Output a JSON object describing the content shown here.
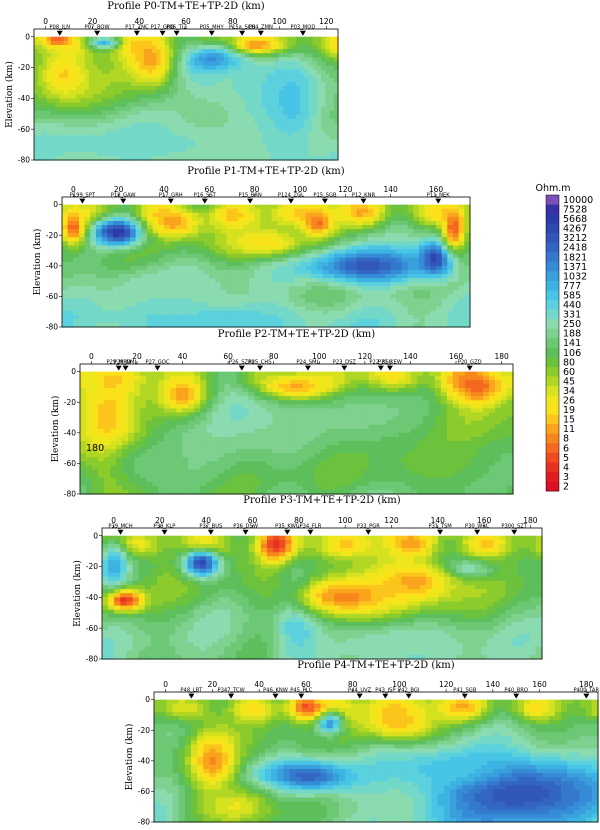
{
  "chart_data": [
    {
      "type": "heatmap",
      "title": "Profile P0-TM+TE+TP-2D (km)",
      "ylabel": "Elevation (km)",
      "x_ticks": [
        0,
        20,
        40,
        60,
        80,
        100,
        120
      ],
      "y_ticks": [
        0,
        -20,
        -40,
        -60,
        -80
      ],
      "xlim": [
        -5,
        125
      ],
      "ylim": [
        -80,
        5
      ],
      "stations": [
        {
          "label": "P08_JLN",
          "x": 6
        },
        {
          "label": "P07_BOW",
          "x": 22
        },
        {
          "label": "P17_ZNC",
          "x": 39
        },
        {
          "label": "P17_GRO",
          "x": 50
        },
        {
          "label": "P06_TIZ",
          "x": 56
        },
        {
          "label": "P05_MHY",
          "x": 71
        },
        {
          "label": "P15a_SCH",
          "x": 84
        },
        {
          "label": "P04_ZMN",
          "x": 92
        },
        {
          "label": "P03_MOD",
          "x": 110
        }
      ],
      "features": [
        {
          "x": 25,
          "z": -4,
          "rx": 7,
          "rz": 4,
          "v": 3.2
        },
        {
          "x": 72,
          "z": -18,
          "rx": 15,
          "rz": 14,
          "v": 4.2
        },
        {
          "x": 80,
          "z": -30,
          "rx": 30,
          "rz": 18,
          "v": 2.6
        },
        {
          "x": 105,
          "z": -45,
          "rx": 15,
          "rz": 40,
          "v": 3.0
        },
        {
          "x": 40,
          "z": -70,
          "rx": 70,
          "rz": 18,
          "v": 2.7
        },
        {
          "x": 45,
          "z": -15,
          "rx": 10,
          "rz": 18,
          "v": 0.9
        },
        {
          "x": 8,
          "z": -25,
          "rx": 12,
          "rz": 18,
          "v": 1.1
        },
        {
          "x": 90,
          "z": -5,
          "rx": 10,
          "rz": 6,
          "v": 0.8
        },
        {
          "x": 5,
          "z": -2,
          "rx": 6,
          "rz": 4,
          "v": 0.5
        }
      ],
      "base": 1.9
    },
    {
      "type": "heatmap",
      "title": "Profile P1-TM+TE+TP-2D (km)",
      "ylabel": "Elevation (km)",
      "x_ticks": [
        0,
        20,
        40,
        60,
        80,
        100,
        120,
        140,
        160
      ],
      "y_ticks": [
        0,
        -20,
        -40,
        -60,
        -80
      ],
      "xlim": [
        -5,
        175
      ],
      "ylim": [
        -80,
        5
      ],
      "stations": [
        {
          "label": "P199_SPT",
          "x": 4
        },
        {
          "label": "P18_GAW",
          "x": 22
        },
        {
          "label": "P17_GRH",
          "x": 43
        },
        {
          "label": "P16_SST",
          "x": 58
        },
        {
          "label": "P15_BRN",
          "x": 78
        },
        {
          "label": "P124_ZGL",
          "x": 96
        },
        {
          "label": "P15_SGB",
          "x": 111
        },
        {
          "label": "P12_KNR",
          "x": 128
        },
        {
          "label": "P11_NEK",
          "x": 161
        }
      ],
      "features": [
        {
          "x": 20,
          "z": -18,
          "rx": 11,
          "rz": 9,
          "v": 4.3
        },
        {
          "x": 130,
          "z": -40,
          "rx": 28,
          "rz": 12,
          "v": 3.9
        },
        {
          "x": 160,
          "z": -35,
          "rx": 8,
          "rz": 12,
          "v": 4.1
        },
        {
          "x": 60,
          "z": -75,
          "rx": 55,
          "rz": 14,
          "v": 2.9
        },
        {
          "x": 40,
          "z": -55,
          "rx": 30,
          "rz": 15,
          "v": 2.6
        },
        {
          "x": 0,
          "z": -15,
          "rx": 6,
          "rz": 12,
          "v": 0.6
        },
        {
          "x": 45,
          "z": -12,
          "rx": 12,
          "rz": 10,
          "v": 0.9
        },
        {
          "x": 108,
          "z": -12,
          "rx": 7,
          "rz": 10,
          "v": 0.6
        },
        {
          "x": 168,
          "z": -15,
          "rx": 5,
          "rz": 15,
          "v": 0.5
        },
        {
          "x": 85,
          "z": -25,
          "rx": 20,
          "rz": 10,
          "v": 1.2
        }
      ],
      "base": 2.0
    },
    {
      "type": "heatmap",
      "title": "Profile P2-TM+TE+TP-2D (km)",
      "ylabel": "Elevation (km)",
      "x_ticks": [
        0,
        20,
        40,
        60,
        80,
        100,
        120,
        140,
        160,
        180
      ],
      "y_ticks": [
        0,
        -20,
        -40,
        -60,
        -80
      ],
      "xlim": [
        -5,
        185
      ],
      "ylim": [
        -80,
        5
      ],
      "annotations": [
        "180"
      ],
      "stations": [
        {
          "label": "P29_MRD",
          "x": 12
        },
        {
          "label": "P28_NML",
          "x": 15
        },
        {
          "label": "P27_GOC",
          "x": 29
        },
        {
          "label": "P26_SZRa",
          "x": 66
        },
        {
          "label": "P25_CHS",
          "x": 74
        },
        {
          "label": "P24_SML",
          "x": 95
        },
        {
          "label": "P23_DSZ",
          "x": 111
        },
        {
          "label": "P22_RSC",
          "x": 127
        },
        {
          "label": "P21_KEW",
          "x": 131
        },
        {
          "label": "P20_GZD",
          "x": 166
        }
      ],
      "features": [
        {
          "x": 10,
          "z": -35,
          "rx": 15,
          "rz": 40,
          "v": 0.5
        },
        {
          "x": 60,
          "z": -25,
          "rx": 40,
          "rz": 30,
          "v": 2.7
        },
        {
          "x": 120,
          "z": -30,
          "rx": 30,
          "rz": 25,
          "v": 2.4
        },
        {
          "x": 30,
          "z": -60,
          "rx": 30,
          "rz": 20,
          "v": 2.3
        },
        {
          "x": 90,
          "z": -10,
          "rx": 15,
          "rz": 8,
          "v": 0.9
        },
        {
          "x": 40,
          "z": -15,
          "rx": 12,
          "rz": 14,
          "v": 0.9
        },
        {
          "x": 170,
          "z": -10,
          "rx": 12,
          "rz": 12,
          "v": 0.6
        },
        {
          "x": 150,
          "z": -60,
          "rx": 35,
          "rz": 20,
          "v": 2.0
        }
      ],
      "base": 1.7
    },
    {
      "type": "heatmap",
      "title": "Profile P3-TM+TE+TP-2D (km)",
      "ylabel": "Elevation (km)",
      "x_ticks": [
        0,
        20,
        40,
        60,
        80,
        100,
        120,
        140,
        160,
        180
      ],
      "y_ticks": [
        0,
        -20,
        -40,
        -60,
        -80
      ],
      "xlim": [
        -5,
        185
      ],
      "ylim": [
        -80,
        5
      ],
      "stations": [
        {
          "label": "P39_MCH",
          "x": 3
        },
        {
          "label": "P38_KLP",
          "x": 22
        },
        {
          "label": "P37_BUS",
          "x": 42
        },
        {
          "label": "P36_DSW",
          "x": 57
        },
        {
          "label": "P35_KWC",
          "x": 75
        },
        {
          "label": "P34_FLR",
          "x": 85
        },
        {
          "label": "P33_PGR",
          "x": 110
        },
        {
          "label": "P31_TSM",
          "x": 141
        },
        {
          "label": "P30_WRC",
          "x": 157
        },
        {
          "label": "P300_SZT",
          "x": 173
        }
      ],
      "features": [
        {
          "x": 38,
          "z": -18,
          "rx": 8,
          "rz": 9,
          "v": 4.0
        },
        {
          "x": 0,
          "z": -20,
          "rx": 6,
          "rz": 15,
          "v": 3.2
        },
        {
          "x": 80,
          "z": -50,
          "rx": 10,
          "rz": 30,
          "v": 3.3
        },
        {
          "x": 150,
          "z": -22,
          "rx": 12,
          "rz": 6,
          "v": 3.0
        },
        {
          "x": 100,
          "z": -40,
          "rx": 25,
          "rz": 15,
          "v": 0.7
        },
        {
          "x": 5,
          "z": -42,
          "rx": 8,
          "rz": 7,
          "v": 0.3
        },
        {
          "x": 130,
          "z": -30,
          "rx": 20,
          "rz": 15,
          "v": 0.9
        },
        {
          "x": 70,
          "z": -5,
          "rx": 6,
          "rz": 10,
          "v": 0.3
        },
        {
          "x": 120,
          "z": -70,
          "rx": 40,
          "rz": 15,
          "v": 2.6
        }
      ],
      "base": 1.9
    },
    {
      "type": "heatmap",
      "title": "Profile P4-TM+TE+TP-2D (km)",
      "ylabel": "Elevation (km)",
      "x_ticks": [
        0,
        20,
        40,
        60,
        80,
        100,
        120,
        140,
        160,
        180
      ],
      "y_ticks": [
        0,
        -20,
        -40,
        -60,
        -80
      ],
      "xlim": [
        -5,
        185
      ],
      "ylim": [
        -80,
        5
      ],
      "stations": [
        {
          "label": "P48_LBT",
          "x": 11
        },
        {
          "label": "P347_TCW",
          "x": 28
        },
        {
          "label": "P46_KNW",
          "x": 47
        },
        {
          "label": "P45_PLC",
          "x": 58
        },
        {
          "label": "P44_UVZ",
          "x": 83
        },
        {
          "label": "P43_JSP",
          "x": 94
        },
        {
          "label": "P42_BGI",
          "x": 104
        },
        {
          "label": "P41_SGB",
          "x": 128
        },
        {
          "label": "P40_BRO",
          "x": 150
        },
        {
          "label": "P400_TAR",
          "x": 180
        }
      ],
      "features": [
        {
          "x": 60,
          "z": -50,
          "rx": 20,
          "rz": 10,
          "v": 3.8
        },
        {
          "x": 150,
          "z": -60,
          "rx": 40,
          "rz": 25,
          "v": 4.0
        },
        {
          "x": 120,
          "z": -45,
          "rx": 25,
          "rz": 12,
          "v": 3.0
        },
        {
          "x": 70,
          "z": -15,
          "rx": 6,
          "rz": 8,
          "v": 3.5
        },
        {
          "x": 20,
          "z": -40,
          "rx": 10,
          "rz": 20,
          "v": 0.8
        },
        {
          "x": 60,
          "z": -5,
          "rx": 8,
          "rz": 8,
          "v": 0.5
        },
        {
          "x": 100,
          "z": -15,
          "rx": 15,
          "rz": 12,
          "v": 1.0
        },
        {
          "x": 30,
          "z": -70,
          "rx": 20,
          "rz": 15,
          "v": 1.4
        }
      ],
      "base": 2.0
    }
  ],
  "colorbar": {
    "title": "Ohm.m",
    "labels": [
      "10000",
      "7528",
      "5668",
      "4267",
      "3212",
      "2418",
      "1821",
      "1371",
      "1032",
      "777",
      "585",
      "440",
      "331",
      "250",
      "188",
      "141",
      "106",
      "80",
      "60",
      "45",
      "34",
      "26",
      "19",
      "15",
      "11",
      "8",
      "6",
      "5",
      "4",
      "3",
      "2"
    ],
    "colors": [
      "#7a4fb8",
      "#3b2fa8",
      "#2a3aa8",
      "#2d49b0",
      "#3057b9",
      "#3366c3",
      "#3579cc",
      "#368bd6",
      "#39a0dc",
      "#3db3e2",
      "#47c4e6",
      "#5bd1dd",
      "#73d8c8",
      "#8adcb0",
      "#7fd190",
      "#6cc874",
      "#5dbf5b",
      "#6cc23c",
      "#8ccb2c",
      "#b1d724",
      "#d6e11f",
      "#f0e61c",
      "#fbe11a",
      "#fbc51b",
      "#f9a41c",
      "#f7861d",
      "#f4681f",
      "#ef4a21",
      "#e73223",
      "#e11d24",
      "#dc0e26"
    ]
  }
}
